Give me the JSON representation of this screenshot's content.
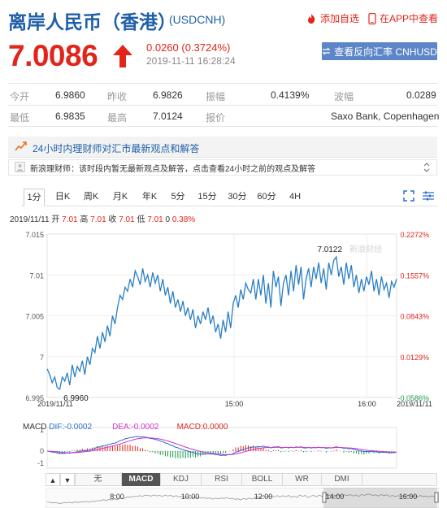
{
  "header": {
    "title": "离岸人民币（香港）",
    "code": "(USDCNH)",
    "add_watch": "添加自选",
    "in_app": "在APP中查看"
  },
  "quote": {
    "price": "7.0086",
    "change": "0.0260 (0.3724%)",
    "time": "2019-11-11 16:28:24",
    "reverse_button": "查看反向汇率 CNHUSD"
  },
  "stats": [
    {
      "label": "今开",
      "value": "6.9860"
    },
    {
      "label": "昨收",
      "value": "6.9826"
    },
    {
      "label": "振幅",
      "value": "0.4139%"
    },
    {
      "label": "波幅",
      "value": "0.0289"
    },
    {
      "label": "最低",
      "value": "6.9835"
    },
    {
      "label": "最高",
      "value": "7.0124"
    },
    {
      "label": "报价",
      "value": "Saxo Bank, Copenhagen"
    }
  ],
  "news": {
    "title": "24小时内理财师对汇市最新观点和解答",
    "row_text": "新浪理财师：该时段内暂无最新观点及解答，点击查看24小时之前的观点及解答"
  },
  "tabs": [
    "1分",
    "日K",
    "周K",
    "月K",
    "年K",
    "5分",
    "15分",
    "30分",
    "60分",
    "4H"
  ],
  "ohlc": {
    "date": "2019/11/11",
    "open_label": "开",
    "open": "7.01",
    "high_label": "高",
    "high": "7.01",
    "close_label": "收",
    "close": "7.01",
    "low_label": "低",
    "low": "7.01",
    "vol": "0",
    "pct": "0.38%"
  },
  "chart_data": {
    "type": "line",
    "y_ticks": [
      "7.015",
      "7.01",
      "7.005",
      "7",
      "6.995"
    ],
    "pct_ticks": [
      "0.2272%",
      "0.1557%",
      "0.0843%",
      "0.0129%",
      "-0.0586%"
    ],
    "x_labels": [
      "2019/11/11",
      "15:00",
      "16:00",
      "2019/11/11"
    ],
    "ylim": [
      6.995,
      7.015
    ],
    "annotations": [
      {
        "text": "7.0122",
        "x_index": 115,
        "value": 7.0122
      },
      {
        "text": "6.9960",
        "x_index": 5,
        "value": 6.996
      }
    ],
    "watermark": "新浪财经",
    "values": [
      6.9985,
      6.9978,
      6.9968,
      6.9975,
      6.9962,
      6.996,
      6.9975,
      6.997,
      6.998,
      6.9965,
      6.999,
      6.9975,
      6.9988,
      6.9982,
      6.9995,
      6.9978,
      7.0,
      6.999,
      7.001,
      7.0005,
      7.0025,
      7.001,
      7.003,
      7.0018,
      7.0038,
      7.0025,
      7.005,
      7.004,
      7.006,
      7.0075,
      7.007,
      7.0085,
      7.008,
      7.0095,
      7.0085,
      7.0105,
      7.0098,
      7.0088,
      7.0108,
      7.0092,
      7.01,
      7.0085,
      7.0103,
      7.009,
      7.01,
      7.008,
      7.0095,
      7.0075,
      7.0085,
      7.0065,
      7.008,
      7.006,
      7.007,
      7.0055,
      7.0068,
      7.005,
      7.006,
      7.0045,
      7.0058,
      7.0035,
      7.005,
      7.004,
      7.0055,
      7.0045,
      7.006,
      7.004,
      7.005,
      7.003,
      7.004,
      7.0022,
      7.0045,
      7.003,
      7.0055,
      7.0035,
      7.0065,
      7.0075,
      7.006,
      7.0082,
      7.007,
      7.009,
      7.0082,
      7.0078,
      7.0095,
      7.007,
      7.0095,
      7.0075,
      7.01,
      7.0065,
      7.009,
      7.006,
      7.0105,
      7.0085,
      7.0098,
      7.0062,
      7.009,
      7.01,
      7.0075,
      7.0105,
      7.008,
      7.0112,
      7.0088,
      7.011,
      7.007,
      7.0095,
      7.0108,
      7.0085,
      7.011,
      7.0095,
      7.0115,
      7.009,
      7.0108,
      7.0082,
      7.0115,
      7.01,
      7.0118,
      7.0122,
      7.0098,
      7.011,
      7.0088,
      7.0115,
      7.0095,
      7.0112,
      7.0085,
      7.01,
      7.0078,
      7.0095,
      7.008,
      7.0098,
      7.0088,
      7.0105,
      7.008,
      7.0095,
      7.0075,
      7.0098,
      7.0082,
      7.009,
      7.0072,
      7.0092,
      7.0085,
      7.0095
    ]
  },
  "macd": {
    "label": "MACD",
    "dif_label": "DIF:",
    "dif": "-0.0002",
    "dea_label": "DEA:",
    "dea": "-0.0002",
    "macd_label": "MACD:",
    "macd": "0.0000",
    "y_ticks": [
      "1",
      "0",
      "-1"
    ],
    "colors": {
      "dif": "#2b6cd0",
      "dea": "#d531c7",
      "macd": "#e1251b"
    }
  },
  "indicators": [
    "无",
    "MACD",
    "KDJ",
    "RSI",
    "BOLL",
    "WR",
    "DMI"
  ],
  "navigator": {
    "labels": [
      "8:00",
      "10:00",
      "12:00",
      "14:00",
      "16:00"
    ]
  },
  "colors": {
    "brand": "#1f5fa8",
    "up": "#e1251b",
    "line": "#2a7fc4",
    "button": "#5d86c8"
  }
}
